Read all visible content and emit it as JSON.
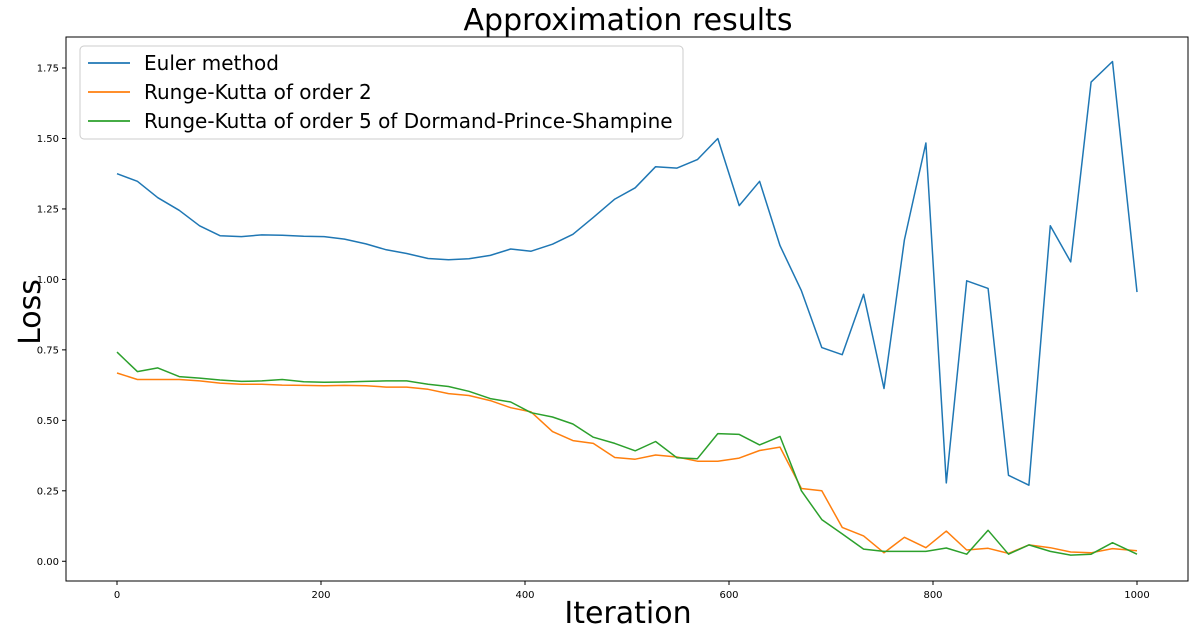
{
  "chart_data": {
    "type": "line",
    "title": "Approximation results",
    "xlabel": "Iteration",
    "ylabel": "Loss",
    "xlim": [
      -50,
      1050
    ],
    "ylim": [
      -0.07,
      1.86
    ],
    "xticks": [
      0,
      200,
      400,
      600,
      800,
      1000
    ],
    "yticks": [
      0.0,
      0.25,
      0.5,
      0.75,
      1.0,
      1.25,
      1.5,
      1.75
    ],
    "ytick_labels": [
      "0.00",
      "0.25",
      "0.50",
      "0.75",
      "1.00",
      "1.25",
      "1.50",
      "1.75"
    ],
    "grid": false,
    "legend_position": "top-left",
    "x": [
      0,
      20,
      40,
      61,
      81,
      101,
      122,
      142,
      162,
      183,
      203,
      223,
      244,
      264,
      284,
      305,
      325,
      345,
      366,
      386,
      406,
      427,
      447,
      467,
      488,
      508,
      528,
      549,
      569,
      589,
      610,
      630,
      650,
      671,
      691,
      711,
      732,
      752,
      772,
      793,
      813,
      833,
      854,
      874,
      894,
      915,
      935,
      955,
      976,
      1000
    ],
    "series": [
      {
        "name": "Euler method",
        "color": "#1f77b4",
        "values": [
          1.375,
          1.348,
          1.29,
          1.245,
          1.19,
          1.155,
          1.152,
          1.158,
          1.157,
          1.153,
          1.152,
          1.143,
          1.126,
          1.105,
          1.092,
          1.074,
          1.07,
          1.073,
          1.085,
          1.108,
          1.1,
          1.125,
          1.16,
          1.22,
          1.285,
          1.325,
          1.4,
          1.395,
          1.425,
          1.5,
          1.262,
          1.348,
          1.12,
          0.96,
          0.758,
          0.733,
          0.947,
          0.613,
          1.14,
          1.484,
          0.278,
          0.995,
          0.968,
          0.305,
          0.27,
          1.19,
          1.062,
          1.7,
          1.773,
          0.955
        ]
      },
      {
        "name": "Runge-Kutta of order 2",
        "color": "#ff7f0e",
        "values": [
          0.668,
          0.645,
          0.645,
          0.645,
          0.64,
          0.632,
          0.628,
          0.628,
          0.625,
          0.624,
          0.623,
          0.624,
          0.623,
          0.618,
          0.618,
          0.61,
          0.595,
          0.588,
          0.57,
          0.545,
          0.53,
          0.46,
          0.428,
          0.418,
          0.368,
          0.362,
          0.377,
          0.37,
          0.355,
          0.355,
          0.366,
          0.393,
          0.405,
          0.258,
          0.25,
          0.12,
          0.09,
          0.03,
          0.085,
          0.048,
          0.107,
          0.04,
          0.046,
          0.028,
          0.058,
          0.048,
          0.033,
          0.03,
          0.045,
          0.037
        ]
      },
      {
        "name": "Runge-Kutta of order 5 of Dormand-Prince-Shampine",
        "color": "#2ca02c",
        "values": [
          0.742,
          0.673,
          0.686,
          0.655,
          0.65,
          0.643,
          0.638,
          0.64,
          0.645,
          0.637,
          0.635,
          0.636,
          0.638,
          0.64,
          0.64,
          0.628,
          0.62,
          0.603,
          0.577,
          0.565,
          0.527,
          0.512,
          0.487,
          0.44,
          0.418,
          0.392,
          0.425,
          0.367,
          0.364,
          0.453,
          0.45,
          0.413,
          0.443,
          0.25,
          0.148,
          0.097,
          0.043,
          0.035,
          0.035,
          0.035,
          0.047,
          0.025,
          0.11,
          0.025,
          0.058,
          0.035,
          0.022,
          0.025,
          0.066,
          0.025
        ]
      }
    ]
  }
}
